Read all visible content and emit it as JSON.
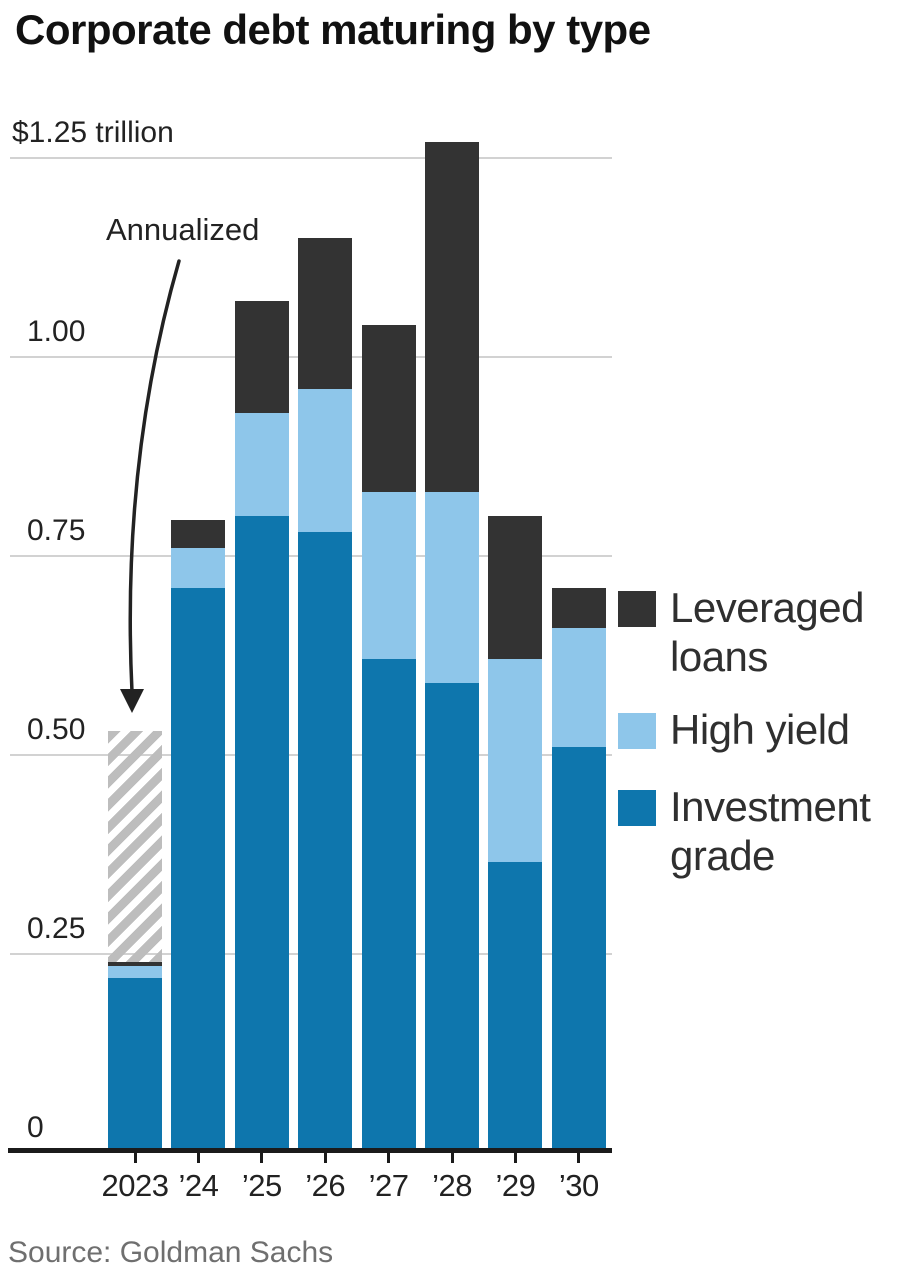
{
  "title": "Corporate debt maturing by type",
  "source": "Source: Goldman Sachs",
  "annotation": {
    "label": "Annualized"
  },
  "legend": [
    {
      "line1": "Leveraged",
      "line2": "loans",
      "color": "#333333"
    },
    {
      "line1": "High yield",
      "line2": "",
      "color": "#8ec6ea"
    },
    {
      "line1": "Investment",
      "line2": "grade",
      "color": "#0e76ad"
    }
  ],
  "chart_data": {
    "type": "bar",
    "stacked": true,
    "title": "Corporate debt maturing by type",
    "unit": "trillion USD",
    "categories": [
      "2023",
      "’24",
      "’25",
      "’26",
      "’27",
      "’28",
      "’29",
      "’30"
    ],
    "series": [
      {
        "name": "Investment grade",
        "color": "#0e76ad",
        "values": [
          0.22,
          0.71,
          0.8,
          0.78,
          0.62,
          0.59,
          0.365,
          0.51
        ]
      },
      {
        "name": "High yield",
        "color": "#8ec6ea",
        "values": [
          0.015,
          0.05,
          0.13,
          0.18,
          0.21,
          0.24,
          0.255,
          0.15
        ]
      },
      {
        "name": "Leveraged loans",
        "color": "#333333",
        "values": [
          0.005,
          0.035,
          0.14,
          0.19,
          0.21,
          0.44,
          0.18,
          0.05
        ]
      }
    ],
    "annualized_projection": {
      "category": "2023",
      "total": 0.53,
      "style": "gray-hatch"
    },
    "y_axis": {
      "ticks": [
        {
          "label": "$1.25 trillion",
          "value": 1.25
        },
        {
          "label": "1.00",
          "value": 1.0
        },
        {
          "label": "0.75",
          "value": 0.75
        },
        {
          "label": "0.50",
          "value": 0.5
        },
        {
          "label": "0.25",
          "value": 0.25
        },
        {
          "label": "0",
          "value": 0
        }
      ],
      "ylim": [
        0,
        1.27
      ],
      "grid": true
    },
    "legend_position": "right"
  }
}
